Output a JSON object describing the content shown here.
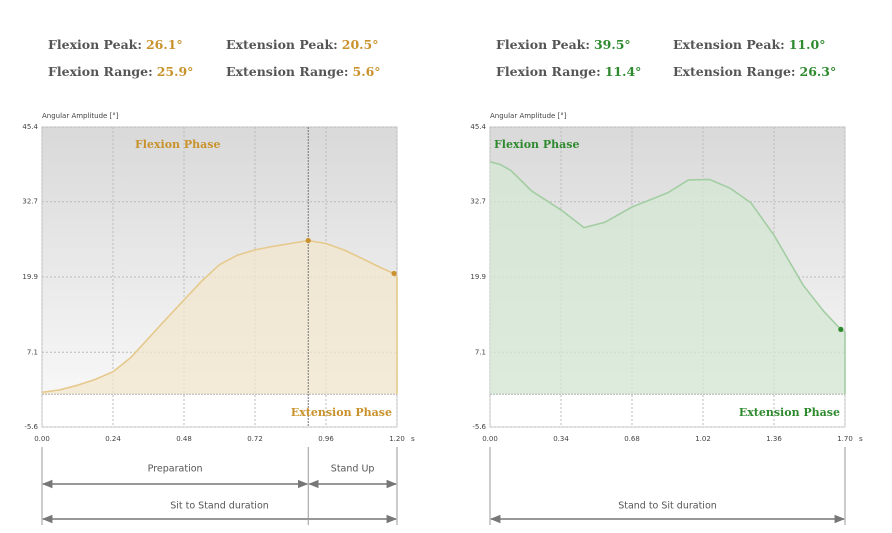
{
  "chart_data": [
    {
      "type": "area",
      "color": "#e6c98c",
      "accent": "#c9922c",
      "fill": "#f1e6cc",
      "stats": [
        [
          {
            "label": "Flexion Peak:",
            "value": "26.1°"
          },
          {
            "label": "Extension Peak:",
            "value": "20.5°"
          }
        ],
        [
          {
            "label": "Flexion Range:",
            "value": "25.9°"
          },
          {
            "label": "Extension Range:",
            "value": "5.6°"
          }
        ]
      ],
      "y_label": "Angular Amplitude [°]",
      "x_label": "s",
      "flexion_label": "Flexion Phase",
      "extension_label": "Extension Phase",
      "x": [
        0,
        0.06,
        0.12,
        0.18,
        0.24,
        0.3,
        0.36,
        0.42,
        0.48,
        0.54,
        0.6,
        0.66,
        0.72,
        0.78,
        0.84,
        0.9,
        0.96,
        1.02,
        1.08,
        1.14,
        1.19,
        1.2
      ],
      "values": [
        0.3,
        0.7,
        1.5,
        2.5,
        3.8,
        6.2,
        9.5,
        12.8,
        16,
        19.2,
        22,
        23.6,
        24.5,
        25.1,
        25.6,
        26.1,
        25.6,
        24.5,
        23.1,
        21.6,
        20.5,
        19.9
      ],
      "highlight_points": [
        {
          "x": 0.9,
          "y": 26.1
        },
        {
          "x": 1.19,
          "y": 20.5
        }
      ],
      "phase_divider": 0.9,
      "baseline": 0,
      "phase_spans": [
        {
          "label": "Preparation",
          "start": 0,
          "end": 0.9
        },
        {
          "label": "Stand Up",
          "start": 0.9,
          "end": 1.2
        }
      ],
      "total_span": {
        "label": "Sit to Stand duration",
        "start": 0,
        "end": 1.2
      },
      "xlim": [
        0,
        1.2
      ],
      "ylim": [
        -5.6,
        45.4
      ],
      "xticks": [
        {
          "value": 0,
          "label": "0.00"
        },
        {
          "value": 0.24,
          "label": "0.24"
        },
        {
          "value": 0.48,
          "label": "0.48"
        },
        {
          "value": 0.72,
          "label": "0.72"
        },
        {
          "value": 0.96,
          "label": "0.96"
        },
        {
          "value": 1.2,
          "label": "1.20"
        }
      ],
      "yticks": [
        -5.6,
        7.1,
        19.9,
        32.7,
        45.4
      ],
      "grid": true
    },
    {
      "type": "area",
      "color": "#a3cda3",
      "accent": "#2f8a2f",
      "fill": "#d3e7d3",
      "stats": [
        [
          {
            "label": "Flexion Peak:",
            "value": "39.5°"
          },
          {
            "label": "Extension Peak:",
            "value": "11.0°"
          }
        ],
        [
          {
            "label": "Flexion Range:",
            "value": "11.4°"
          },
          {
            "label": "Extension Range:",
            "value": "26.3°"
          }
        ]
      ],
      "y_label": "Angular Amplitude [°]",
      "x_label": "s",
      "flexion_label": "Flexion Phase",
      "extension_label": "Extension Phase",
      "x": [
        0,
        0.05,
        0.1,
        0.2,
        0.34,
        0.45,
        0.55,
        0.68,
        0.85,
        0.95,
        1.05,
        1.15,
        1.25,
        1.36,
        1.5,
        1.6,
        1.68,
        1.7
      ],
      "values": [
        39.5,
        39,
        38,
        34.5,
        31.3,
        28.3,
        29.2,
        31.8,
        34.2,
        36.4,
        36.5,
        35,
        32.5,
        27,
        18.5,
        14,
        11,
        10.6
      ],
      "highlight_points": [
        {
          "x": 1.68,
          "y": 11
        }
      ],
      "baseline": 0,
      "total_span": {
        "label": "Stand to Sit duration",
        "start": 0,
        "end": 1.7
      },
      "xlim": [
        0,
        1.7
      ],
      "ylim": [
        -5.6,
        45.4
      ],
      "xticks": [
        {
          "value": 0,
          "label": "0.00"
        },
        {
          "value": 0.34,
          "label": "0.34"
        },
        {
          "value": 0.68,
          "label": "0.68"
        },
        {
          "value": 1.02,
          "label": "1.02"
        },
        {
          "value": 1.36,
          "label": "1.36"
        },
        {
          "value": 1.7,
          "label": "1.70"
        }
      ],
      "yticks": [
        -5.6,
        7.1,
        19.9,
        32.7,
        45.4
      ],
      "grid": true
    }
  ]
}
